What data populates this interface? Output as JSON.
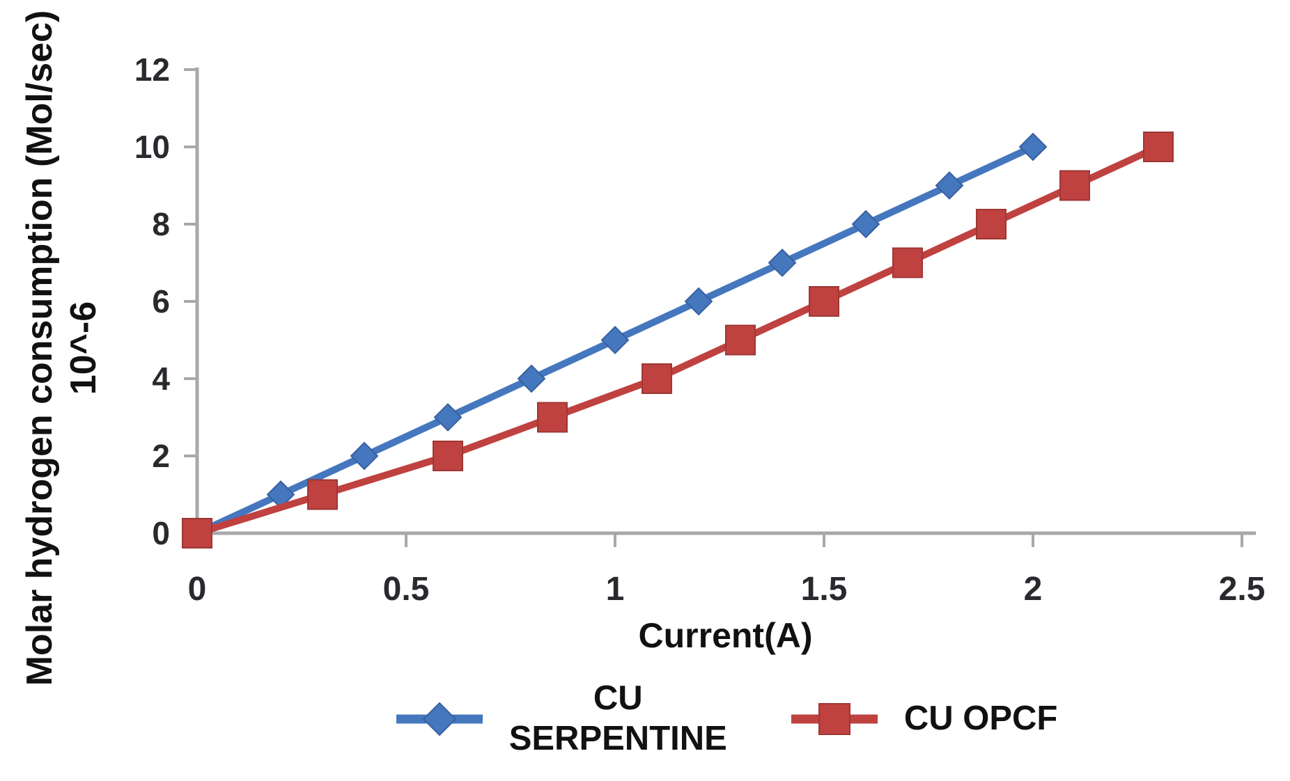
{
  "chart_data": {
    "type": "line",
    "title": "",
    "xlabel": "Current(A)",
    "ylabel_line1": "Molar hydrogen consumption (Mol/sec)",
    "ylabel_line2": "10^-6",
    "xlim": [
      0,
      2.5
    ],
    "ylim": [
      0,
      12
    ],
    "x_tick_values": [
      0,
      0.5,
      1,
      1.5,
      2,
      2.5
    ],
    "x_tick_labels": [
      "0",
      "0.5",
      "1",
      "1.5",
      "2",
      "2.5"
    ],
    "y_tick_values": [
      0,
      2,
      4,
      6,
      8,
      10,
      12
    ],
    "y_tick_labels": [
      "0",
      "2",
      "4",
      "6",
      "8",
      "10",
      "12"
    ],
    "grid": false,
    "legend_position": "bottom",
    "axis_color": "#A8A8A8",
    "tick_label_color": "#29292e",
    "series": [
      {
        "name": "CU SERPENTINE",
        "legend_line1": "CU",
        "legend_line2": "SERPENTINE",
        "color": "#4577BE",
        "edge_color": "#38609f",
        "marker": "diamond",
        "points": [
          [
            0,
            0
          ],
          [
            0.2,
            1
          ],
          [
            0.4,
            2
          ],
          [
            0.6,
            3
          ],
          [
            0.8,
            4
          ],
          [
            1.0,
            5
          ],
          [
            1.2,
            6
          ],
          [
            1.4,
            7
          ],
          [
            1.6,
            8
          ],
          [
            1.8,
            9
          ],
          [
            2.0,
            10
          ]
        ]
      },
      {
        "name": "CU OPCF",
        "legend_line1": "CU OPCF",
        "legend_line2": "",
        "color": "#BF4240",
        "edge_color": "#9d3734",
        "marker": "square",
        "points": [
          [
            0,
            0
          ],
          [
            0.3,
            1
          ],
          [
            0.6,
            2
          ],
          [
            0.85,
            3
          ],
          [
            1.1,
            4
          ],
          [
            1.3,
            5
          ],
          [
            1.5,
            6
          ],
          [
            1.7,
            7
          ],
          [
            1.9,
            8
          ],
          [
            2.1,
            9
          ],
          [
            2.3,
            10
          ]
        ]
      }
    ]
  }
}
